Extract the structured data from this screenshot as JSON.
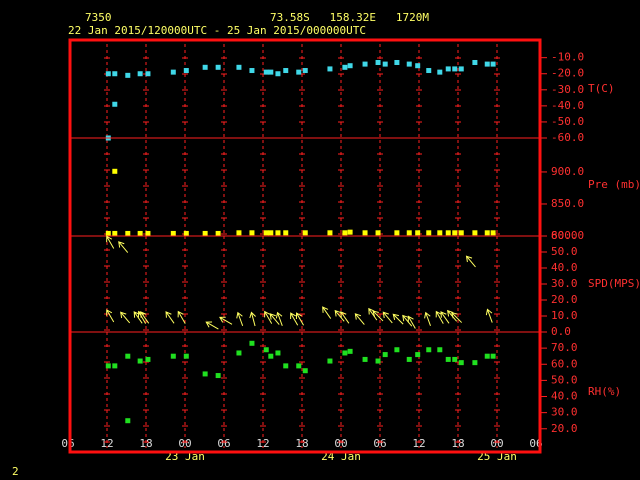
{
  "header": {
    "station": "7350",
    "location": "73.58S   158.32E   1720M",
    "period": "22 Jan 2015/120000UTC - 25 Jan 2015/000000UTC",
    "page": "2"
  },
  "chart_data": [
    {
      "type": "scatter",
      "y_label": "T(C)",
      "color": "#40d8e8",
      "x": [
        6.2,
        7.2,
        7.2,
        6.2,
        9.2,
        11.1,
        12.3,
        16.2,
        18.2,
        21.1,
        23.1,
        26.3,
        28.3,
        30.5,
        31.2,
        32.3,
        33.5,
        35.5,
        36.5,
        40.3,
        42.6,
        43.4,
        45.7,
        47.7,
        48.8,
        50.6,
        52.5,
        53.8,
        55.5,
        57.2,
        58.5,
        59.5,
        60.5,
        62.6,
        64.5,
        65.4
      ],
      "values": [
        -20,
        -20,
        -39,
        -60,
        -21,
        -20,
        -20,
        -19,
        -18,
        -16,
        -16,
        -16,
        -18,
        -19,
        -19,
        -20,
        -18,
        -19,
        -18,
        -17,
        -16,
        -15,
        -14,
        -13,
        -14,
        -13,
        -14,
        -15,
        -18,
        -19,
        -17,
        -17,
        -17,
        -13,
        -14,
        -14
      ],
      "ylim": [
        -60,
        1
      ],
      "yticks": [
        {
          "value": -10,
          "label": "-10.0"
        },
        {
          "value": -20,
          "label": "-20.0"
        },
        {
          "value": -30,
          "label": "-30.0"
        },
        {
          "value": -40,
          "label": "-40.0"
        },
        {
          "value": -50,
          "label": "-50.0"
        },
        {
          "value": -60,
          "label": "-60.0"
        }
      ]
    },
    {
      "type": "scatter",
      "y_label": "Pre (mb)",
      "color": "#ffff00",
      "x": [
        6.2,
        7.2,
        7.2,
        9.2,
        11.1,
        12.3,
        16.2,
        18.2,
        21.1,
        23.1,
        26.3,
        28.3,
        30.5,
        31.2,
        32.3,
        33.5,
        36.5,
        40.3,
        42.6,
        43.4,
        45.7,
        47.7,
        50.6,
        52.5,
        53.8,
        55.5,
        57.2,
        58.5,
        59.5,
        60.5,
        62.6,
        64.5,
        65.4
      ],
      "values": [
        804,
        804,
        901,
        804,
        804,
        804,
        804,
        804,
        804,
        804,
        805,
        805,
        805,
        805,
        805,
        805,
        805,
        805,
        805,
        806,
        805,
        805,
        805,
        805,
        805,
        805,
        805,
        805,
        805,
        805,
        805,
        805,
        805
      ],
      "ylim": [
        800,
        953
      ],
      "yticks": [
        {
          "value": 900,
          "label": "900.0"
        },
        {
          "value": 850,
          "label": "850.0"
        },
        {
          "value": 800,
          "label": "800.0"
        }
      ]
    },
    {
      "type": "wind",
      "y_label": "SPD(MPS)",
      "color": "#ffff60",
      "x": [
        6.5,
        6.5,
        8.5,
        8.8,
        10.8,
        11.4,
        11.8,
        15.7,
        17.5,
        22.2,
        24.3,
        26.5,
        28.5,
        30.8,
        31.8,
        32.6,
        34.8,
        35.7,
        39.8,
        41.8,
        42.6,
        44.9,
        46.9,
        47.7,
        49.2,
        50.8,
        52.2,
        52.9,
        55.4,
        57.2,
        58.0,
        59.1,
        59.8,
        62.0,
        64.9
      ],
      "values": [
        56,
        10,
        53,
        9,
        9,
        9,
        9,
        9,
        9,
        4,
        7,
        8,
        8,
        9,
        8,
        8,
        8,
        8,
        12,
        10,
        9,
        8,
        11,
        10,
        9,
        8,
        7,
        6,
        8,
        9,
        9,
        10,
        9,
        44,
        10
      ],
      "direction": [
        330,
        330,
        320,
        320,
        325,
        330,
        325,
        325,
        330,
        300,
        300,
        340,
        345,
        330,
        320,
        340,
        330,
        330,
        325,
        320,
        325,
        320,
        325,
        315,
        320,
        315,
        320,
        330,
        340,
        330,
        325,
        320,
        315,
        320,
        340
      ],
      "ylim": [
        0,
        60
      ],
      "yticks": [
        {
          "value": 60,
          "label": "60.0"
        },
        {
          "value": 50,
          "label": "50.0"
        },
        {
          "value": 40,
          "label": "40.0"
        },
        {
          "value": 30,
          "label": "30.0"
        },
        {
          "value": 20,
          "label": "20.0"
        },
        {
          "value": 10,
          "label": "10.0"
        },
        {
          "value": 0,
          "label": "0.0"
        }
      ]
    },
    {
      "type": "scatter",
      "y_label": "RH(%)",
      "color": "#20e020",
      "x": [
        6.2,
        7.2,
        9.2,
        11.1,
        12.3,
        16.2,
        18.2,
        21.1,
        23.1,
        26.3,
        28.3,
        30.5,
        31.2,
        32.3,
        33.5,
        35.5,
        36.5,
        40.3,
        42.6,
        43.4,
        45.7,
        47.7,
        48.8,
        50.6,
        52.5,
        53.8,
        55.5,
        57.2,
        58.5,
        59.5,
        60.5,
        62.6,
        64.5,
        65.4,
        9.2
      ],
      "values": [
        59,
        59,
        65,
        62,
        63,
        65,
        65,
        54,
        53,
        67,
        73,
        69,
        65,
        67,
        59,
        59,
        56,
        62,
        67,
        68,
        63,
        62,
        66,
        69,
        63,
        66,
        69,
        69,
        63,
        63,
        61,
        61,
        65,
        65,
        25
      ],
      "ylim": [
        5.6,
        80
      ],
      "yticks": [
        {
          "value": 70,
          "label": "70.0"
        },
        {
          "value": 60,
          "label": "60.0"
        },
        {
          "value": 50,
          "label": "50.0"
        },
        {
          "value": 40,
          "label": "40.0"
        },
        {
          "value": 30,
          "label": "30.0"
        },
        {
          "value": 20,
          "label": "20.0"
        }
      ],
      "xlim": [
        0,
        72
      ],
      "xticks": [
        {
          "value": 0,
          "label": "06"
        },
        {
          "value": 6,
          "label": "12"
        },
        {
          "value": 12,
          "label": "18"
        },
        {
          "value": 18,
          "label": "00"
        },
        {
          "value": 24,
          "label": "06"
        },
        {
          "value": 30,
          "label": "12"
        },
        {
          "value": 36,
          "label": "18"
        },
        {
          "value": 42,
          "label": "00"
        },
        {
          "value": 48,
          "label": "06"
        },
        {
          "value": 54,
          "label": "12"
        },
        {
          "value": 60,
          "label": "18"
        },
        {
          "value": 66,
          "label": "00"
        },
        {
          "value": 72,
          "label": "06"
        }
      ],
      "date_ticks": [
        {
          "value": 18,
          "label": "23 Jan"
        },
        {
          "value": 42,
          "label": "24 Jan"
        },
        {
          "value": 66,
          "label": "25 Jan"
        }
      ]
    }
  ]
}
